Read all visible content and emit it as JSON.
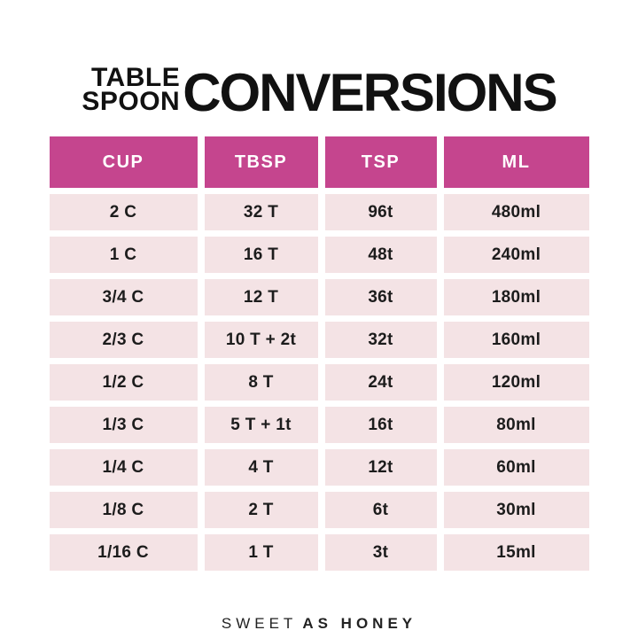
{
  "title": {
    "stacked_top": "TABLE",
    "stacked_bottom": "SPOON",
    "main": "CONVERSIONS"
  },
  "chart_data": {
    "type": "table",
    "title": "TABLE SPOON CONVERSIONS",
    "columns": [
      "CUP",
      "TBSP",
      "TSP",
      "ML"
    ],
    "rows": [
      [
        "2 C",
        "32 T",
        "96t",
        "480ml"
      ],
      [
        "1 C",
        "16 T",
        "48t",
        "240ml"
      ],
      [
        "3/4 C",
        "12 T",
        "36t",
        "180ml"
      ],
      [
        "2/3 C",
        "10 T + 2t",
        "32t",
        "160ml"
      ],
      [
        "1/2 C",
        "8 T",
        "24t",
        "120ml"
      ],
      [
        "1/3 C",
        "5 T + 1t",
        "16t",
        "80ml"
      ],
      [
        "1/4 C",
        "4 T",
        "12t",
        "60ml"
      ],
      [
        "1/8 C",
        "2 T",
        "6t",
        "30ml"
      ],
      [
        "1/16 C",
        "1 T",
        "3t",
        "15ml"
      ]
    ]
  },
  "footer": {
    "brand_light": "SWEET",
    "brand_bold": "AS HONEY"
  },
  "colors": {
    "background": "#FFFFFF",
    "header_bg": "#C5458E",
    "header_text": "#FFFFFF",
    "row_bg": "#F4E3E5",
    "cell_text": "#1C1C1C",
    "title_text": "#111111"
  }
}
